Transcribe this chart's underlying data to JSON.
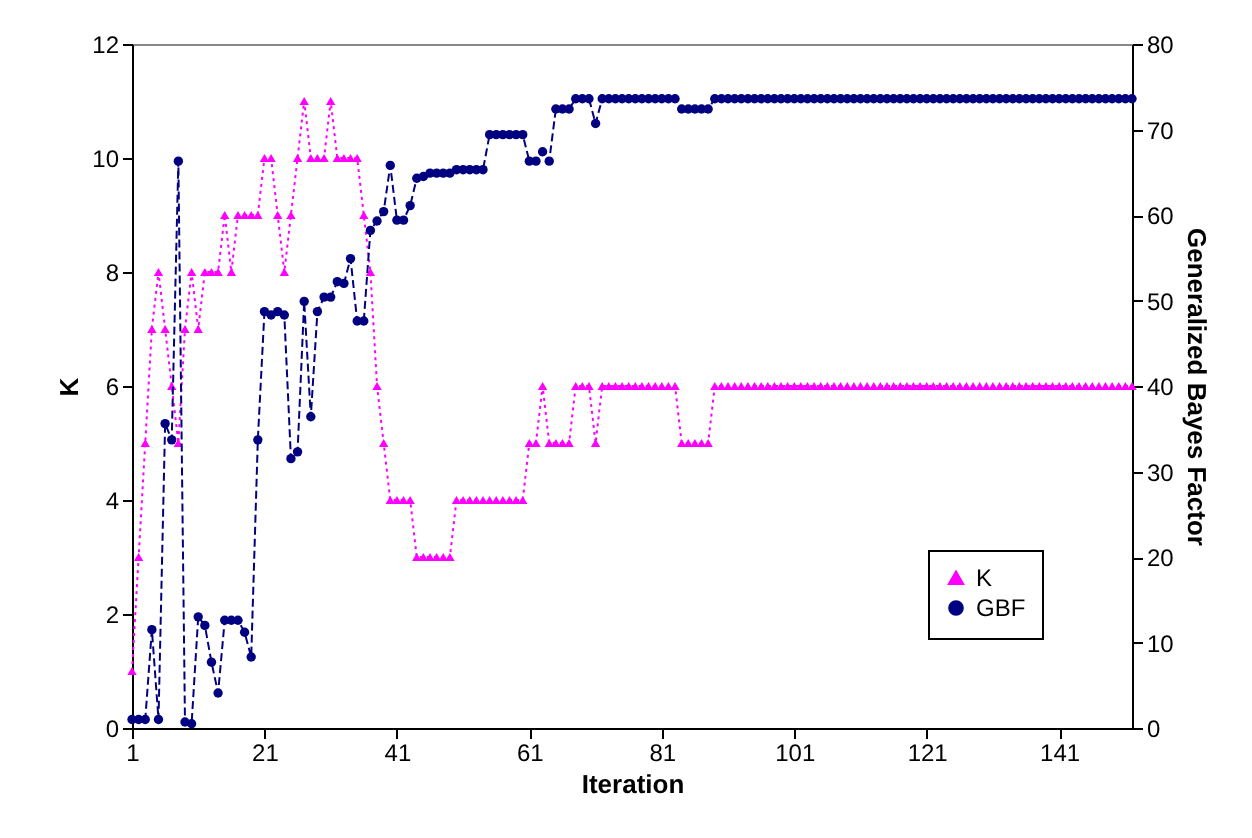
{
  "chart_data": {
    "type": "line",
    "xlabel": "Iteration",
    "ylabel": "K",
    "y2label": "Generalized Bayes Factor",
    "x": [
      1,
      2,
      3,
      4,
      5,
      6,
      7,
      8,
      9,
      10,
      11,
      12,
      13,
      14,
      15,
      16,
      17,
      18,
      19,
      20,
      21,
      22,
      23,
      24,
      25,
      26,
      27,
      28,
      29,
      30,
      31,
      32,
      33,
      34,
      35,
      36,
      37,
      38,
      39,
      40,
      41,
      42,
      43,
      44,
      45,
      46,
      47,
      48,
      49,
      50,
      51,
      52,
      53,
      54,
      55,
      56,
      57,
      58,
      59,
      60,
      61,
      62,
      63,
      64,
      65,
      66,
      67,
      68,
      69,
      70,
      71,
      72,
      73,
      74,
      75,
      76,
      77,
      78,
      79,
      80,
      81,
      82,
      83,
      84,
      85,
      86,
      87,
      88,
      89,
      90,
      91,
      92,
      93,
      94,
      95,
      96,
      97,
      98,
      99,
      100,
      101,
      102,
      103,
      104,
      105,
      106,
      107,
      108,
      109,
      110,
      111,
      112,
      113,
      114,
      115,
      116,
      117,
      118,
      119,
      120,
      121,
      122,
      123,
      124,
      125,
      126,
      127,
      128,
      129,
      130,
      131,
      132,
      133,
      134,
      135,
      136,
      137,
      138,
      139,
      140,
      141,
      142,
      143,
      144,
      145,
      146,
      147,
      148,
      149,
      150,
      151,
      152
    ],
    "xlim": [
      1,
      152
    ],
    "xticks": [
      1,
      21,
      41,
      61,
      81,
      101,
      121,
      141
    ],
    "ylim": [
      0,
      12
    ],
    "yticks": [
      0,
      2,
      4,
      6,
      8,
      10,
      12
    ],
    "y2lim": [
      0,
      80
    ],
    "y2ticks": [
      0,
      10,
      20,
      30,
      40,
      50,
      60,
      70,
      80
    ],
    "legend": "bottom right",
    "series": [
      {
        "name": "K",
        "color": "#ff00ff",
        "marker": "triangle",
        "line_style": "dotted",
        "values": [
          1,
          3,
          5,
          7,
          8,
          7,
          6,
          5,
          7,
          8,
          7,
          8,
          8,
          8,
          9,
          8,
          9,
          9,
          9,
          9,
          10,
          10,
          9,
          8,
          9,
          10,
          11,
          10,
          10,
          10,
          11,
          10,
          10,
          10,
          10,
          9,
          8,
          6,
          5,
          4,
          4,
          4,
          4,
          3,
          3,
          3,
          3,
          3,
          3,
          4,
          4,
          4,
          4,
          4,
          4,
          4,
          4,
          4,
          4,
          4,
          5,
          5,
          6,
          5,
          5,
          5,
          5,
          6,
          6,
          6,
          5,
          6,
          6,
          6,
          6,
          6,
          6,
          6,
          6,
          6,
          6,
          6,
          6,
          5,
          5,
          5,
          5,
          5,
          6,
          6,
          6,
          6,
          6,
          6,
          6,
          6,
          6,
          6,
          6,
          6,
          6,
          6,
          6,
          6,
          6,
          6,
          6,
          6,
          6,
          6,
          6,
          6,
          6,
          6,
          6,
          6,
          6,
          6,
          6,
          6,
          6,
          6,
          6,
          6,
          6,
          6,
          6,
          6,
          6,
          6,
          6,
          6,
          6,
          6,
          6,
          6,
          6,
          6,
          6,
          6,
          6,
          6,
          6,
          6,
          6,
          6,
          6,
          6,
          6,
          6,
          6,
          6
        ]
      },
      {
        "name": "GBF",
        "color": "#000080",
        "marker": "circle",
        "line_style": "dashed",
        "axis": "y2",
        "values": [
          1,
          1,
          1,
          11.5,
          1,
          35.6,
          33.7,
          66.3,
          0.7,
          0.5,
          13,
          12,
          7.7,
          4.1,
          12.6,
          12.6,
          12.6,
          11.2,
          8.3,
          33.7,
          48.7,
          48.3,
          48.7,
          48.3,
          31.5,
          32.3,
          49.9,
          36.4,
          48.7,
          50.4,
          50.4,
          52.2,
          52,
          54.9,
          47.6,
          47.6,
          58.2,
          59.3,
          60.4,
          65.8,
          59.4,
          59.4,
          61.1,
          64.3,
          64.5,
          64.9,
          64.9,
          64.9,
          64.9,
          65.3,
          65.3,
          65.3,
          65.3,
          65.3,
          69.4,
          69.4,
          69.4,
          69.4,
          69.4,
          69.4,
          66.3,
          66.3,
          67.4,
          66.3,
          72.4,
          72.4,
          72.4,
          73.6,
          73.6,
          73.6,
          70.7,
          73.6,
          73.6,
          73.6,
          73.6,
          73.6,
          73.6,
          73.6,
          73.6,
          73.6,
          73.6,
          73.6,
          73.6,
          72.4,
          72.4,
          72.4,
          72.4,
          72.4,
          73.6,
          73.6,
          73.6,
          73.6,
          73.6,
          73.6,
          73.6,
          73.6,
          73.6,
          73.6,
          73.6,
          73.6,
          73.6,
          73.6,
          73.6,
          73.6,
          73.6,
          73.6,
          73.6,
          73.6,
          73.6,
          73.6,
          73.6,
          73.6,
          73.6,
          73.6,
          73.6,
          73.6,
          73.6,
          73.6,
          73.6,
          73.6,
          73.6,
          73.6,
          73.6,
          73.6,
          73.6,
          73.6,
          73.6,
          73.6,
          73.6,
          73.6,
          73.6,
          73.6,
          73.6,
          73.6,
          73.6,
          73.6,
          73.6,
          73.6,
          73.6,
          73.6,
          73.6,
          73.6,
          73.6,
          73.6,
          73.6,
          73.6,
          73.6,
          73.6,
          73.6,
          73.6,
          73.6,
          73.6
        ]
      }
    ]
  }
}
